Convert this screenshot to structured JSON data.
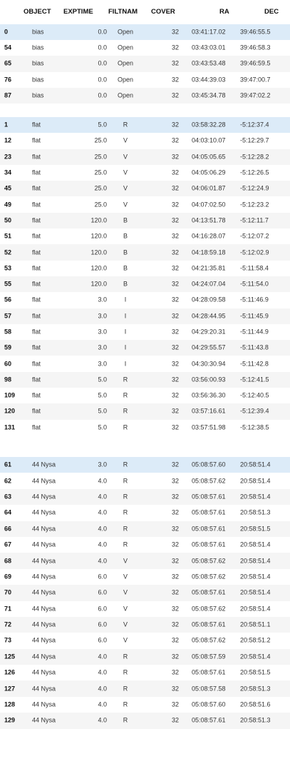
{
  "columns": [
    "OBJECT",
    "EXPTIME",
    "FILTNAM",
    "COVER",
    "RA",
    "DEC"
  ],
  "tables": [
    {
      "name": "bias",
      "rows": [
        {
          "idx": "0",
          "object": "bias",
          "exptime": "0.0",
          "filtnam": "Open",
          "cover": "32",
          "ra": "03:41:17.02",
          "dec": "39:46:55.5"
        },
        {
          "idx": "54",
          "object": "bias",
          "exptime": "0.0",
          "filtnam": "Open",
          "cover": "32",
          "ra": "03:43:03.01",
          "dec": "39:46:58.3"
        },
        {
          "idx": "65",
          "object": "bias",
          "exptime": "0.0",
          "filtnam": "Open",
          "cover": "32",
          "ra": "03:43:53.48",
          "dec": "39:46:59.5"
        },
        {
          "idx": "76",
          "object": "bias",
          "exptime": "0.0",
          "filtnam": "Open",
          "cover": "32",
          "ra": "03:44:39.03",
          "dec": "39:47:00.7"
        },
        {
          "idx": "87",
          "object": "bias",
          "exptime": "0.0",
          "filtnam": "Open",
          "cover": "32",
          "ra": "03:45:34.78",
          "dec": "39:47:02.2"
        }
      ]
    },
    {
      "name": "flat",
      "rows": [
        {
          "idx": "1",
          "object": "flat",
          "exptime": "5.0",
          "filtnam": "R",
          "cover": "32",
          "ra": "03:58:32.28",
          "dec": "-5:12:37.4"
        },
        {
          "idx": "12",
          "object": "flat",
          "exptime": "25.0",
          "filtnam": "V",
          "cover": "32",
          "ra": "04:03:10.07",
          "dec": "-5:12:29.7"
        },
        {
          "idx": "23",
          "object": "flat",
          "exptime": "25.0",
          "filtnam": "V",
          "cover": "32",
          "ra": "04:05:05.65",
          "dec": "-5:12:28.2"
        },
        {
          "idx": "34",
          "object": "flat",
          "exptime": "25.0",
          "filtnam": "V",
          "cover": "32",
          "ra": "04:05:06.29",
          "dec": "-5:12:26.5"
        },
        {
          "idx": "45",
          "object": "flat",
          "exptime": "25.0",
          "filtnam": "V",
          "cover": "32",
          "ra": "04:06:01.87",
          "dec": "-5:12:24.9"
        },
        {
          "idx": "49",
          "object": "flat",
          "exptime": "25.0",
          "filtnam": "V",
          "cover": "32",
          "ra": "04:07:02.50",
          "dec": "-5:12:23.2"
        },
        {
          "idx": "50",
          "object": "flat",
          "exptime": "120.0",
          "filtnam": "B",
          "cover": "32",
          "ra": "04:13:51.78",
          "dec": "-5:12:11.7"
        },
        {
          "idx": "51",
          "object": "flat",
          "exptime": "120.0",
          "filtnam": "B",
          "cover": "32",
          "ra": "04:16:28.07",
          "dec": "-5:12:07.2"
        },
        {
          "idx": "52",
          "object": "flat",
          "exptime": "120.0",
          "filtnam": "B",
          "cover": "32",
          "ra": "04:18:59.18",
          "dec": "-5:12:02.9"
        },
        {
          "idx": "53",
          "object": "flat",
          "exptime": "120.0",
          "filtnam": "B",
          "cover": "32",
          "ra": "04:21:35.81",
          "dec": "-5:11:58.4"
        },
        {
          "idx": "55",
          "object": "flat",
          "exptime": "120.0",
          "filtnam": "B",
          "cover": "32",
          "ra": "04:24:07.04",
          "dec": "-5:11:54.0"
        },
        {
          "idx": "56",
          "object": "flat",
          "exptime": "3.0",
          "filtnam": "I",
          "cover": "32",
          "ra": "04:28:09.58",
          "dec": "-5:11:46.9"
        },
        {
          "idx": "57",
          "object": "flat",
          "exptime": "3.0",
          "filtnam": "I",
          "cover": "32",
          "ra": "04:28:44.95",
          "dec": "-5:11:45.9"
        },
        {
          "idx": "58",
          "object": "flat",
          "exptime": "3.0",
          "filtnam": "I",
          "cover": "32",
          "ra": "04:29:20.31",
          "dec": "-5:11:44.9"
        },
        {
          "idx": "59",
          "object": "flat",
          "exptime": "3.0",
          "filtnam": "I",
          "cover": "32",
          "ra": "04:29:55.57",
          "dec": "-5:11:43.8"
        },
        {
          "idx": "60",
          "object": "flat",
          "exptime": "3.0",
          "filtnam": "I",
          "cover": "32",
          "ra": "04:30:30.94",
          "dec": "-5:11:42.8"
        },
        {
          "idx": "98",
          "object": "flat",
          "exptime": "5.0",
          "filtnam": "R",
          "cover": "32",
          "ra": "03:56:00.93",
          "dec": "-5:12:41.5"
        },
        {
          "idx": "109",
          "object": "flat",
          "exptime": "5.0",
          "filtnam": "R",
          "cover": "32",
          "ra": "03:56:36.30",
          "dec": "-5:12:40.5"
        },
        {
          "idx": "120",
          "object": "flat",
          "exptime": "5.0",
          "filtnam": "R",
          "cover": "32",
          "ra": "03:57:16.61",
          "dec": "-5:12:39.4"
        },
        {
          "idx": "131",
          "object": "flat",
          "exptime": "5.0",
          "filtnam": "R",
          "cover": "32",
          "ra": "03:57:51.98",
          "dec": "-5:12:38.5"
        }
      ]
    },
    {
      "name": "nysa",
      "rows": [
        {
          "idx": "61",
          "object": "44 Nysa",
          "exptime": "3.0",
          "filtnam": "R",
          "cover": "32",
          "ra": "05:08:57.60",
          "dec": "20:58:51.4"
        },
        {
          "idx": "62",
          "object": "44 Nysa",
          "exptime": "4.0",
          "filtnam": "R",
          "cover": "32",
          "ra": "05:08:57.62",
          "dec": "20:58:51.4"
        },
        {
          "idx": "63",
          "object": "44 Nysa",
          "exptime": "4.0",
          "filtnam": "R",
          "cover": "32",
          "ra": "05:08:57.61",
          "dec": "20:58:51.4"
        },
        {
          "idx": "64",
          "object": "44 Nysa",
          "exptime": "4.0",
          "filtnam": "R",
          "cover": "32",
          "ra": "05:08:57.61",
          "dec": "20:58:51.3"
        },
        {
          "idx": "66",
          "object": "44 Nysa",
          "exptime": "4.0",
          "filtnam": "R",
          "cover": "32",
          "ra": "05:08:57.61",
          "dec": "20:58:51.5"
        },
        {
          "idx": "67",
          "object": "44 Nysa",
          "exptime": "4.0",
          "filtnam": "R",
          "cover": "32",
          "ra": "05:08:57.61",
          "dec": "20:58:51.4"
        },
        {
          "idx": "68",
          "object": "44 Nysa",
          "exptime": "4.0",
          "filtnam": "V",
          "cover": "32",
          "ra": "05:08:57.62",
          "dec": "20:58:51.4"
        },
        {
          "idx": "69",
          "object": "44 Nysa",
          "exptime": "6.0",
          "filtnam": "V",
          "cover": "32",
          "ra": "05:08:57.62",
          "dec": "20:58:51.4"
        },
        {
          "idx": "70",
          "object": "44 Nysa",
          "exptime": "6.0",
          "filtnam": "V",
          "cover": "32",
          "ra": "05:08:57.61",
          "dec": "20:58:51.4"
        },
        {
          "idx": "71",
          "object": "44 Nysa",
          "exptime": "6.0",
          "filtnam": "V",
          "cover": "32",
          "ra": "05:08:57.62",
          "dec": "20:58:51.4"
        },
        {
          "idx": "72",
          "object": "44 Nysa",
          "exptime": "6.0",
          "filtnam": "V",
          "cover": "32",
          "ra": "05:08:57.61",
          "dec": "20:58:51.1"
        },
        {
          "idx": "73",
          "object": "44 Nysa",
          "exptime": "6.0",
          "filtnam": "V",
          "cover": "32",
          "ra": "05:08:57.62",
          "dec": "20:58:51.2"
        },
        {
          "idx": "125",
          "object": "44 Nysa",
          "exptime": "4.0",
          "filtnam": "R",
          "cover": "32",
          "ra": "05:08:57.59",
          "dec": "20:58:51.4"
        },
        {
          "idx": "126",
          "object": "44 Nysa",
          "exptime": "4.0",
          "filtnam": "R",
          "cover": "32",
          "ra": "05:08:57.61",
          "dec": "20:58:51.5"
        },
        {
          "idx": "127",
          "object": "44 Nysa",
          "exptime": "4.0",
          "filtnam": "R",
          "cover": "32",
          "ra": "05:08:57.58",
          "dec": "20:58:51.3"
        },
        {
          "idx": "128",
          "object": "44 Nysa",
          "exptime": "4.0",
          "filtnam": "R",
          "cover": "32",
          "ra": "05:08:57.60",
          "dec": "20:58:51.6"
        },
        {
          "idx": "129",
          "object": "44 Nysa",
          "exptime": "4.0",
          "filtnam": "R",
          "cover": "32",
          "ra": "05:08:57.61",
          "dec": "20:58:51.3"
        }
      ]
    }
  ],
  "colors": {
    "selected_row": "#dcebf8",
    "stripe_row": "#f5f5f5"
  }
}
